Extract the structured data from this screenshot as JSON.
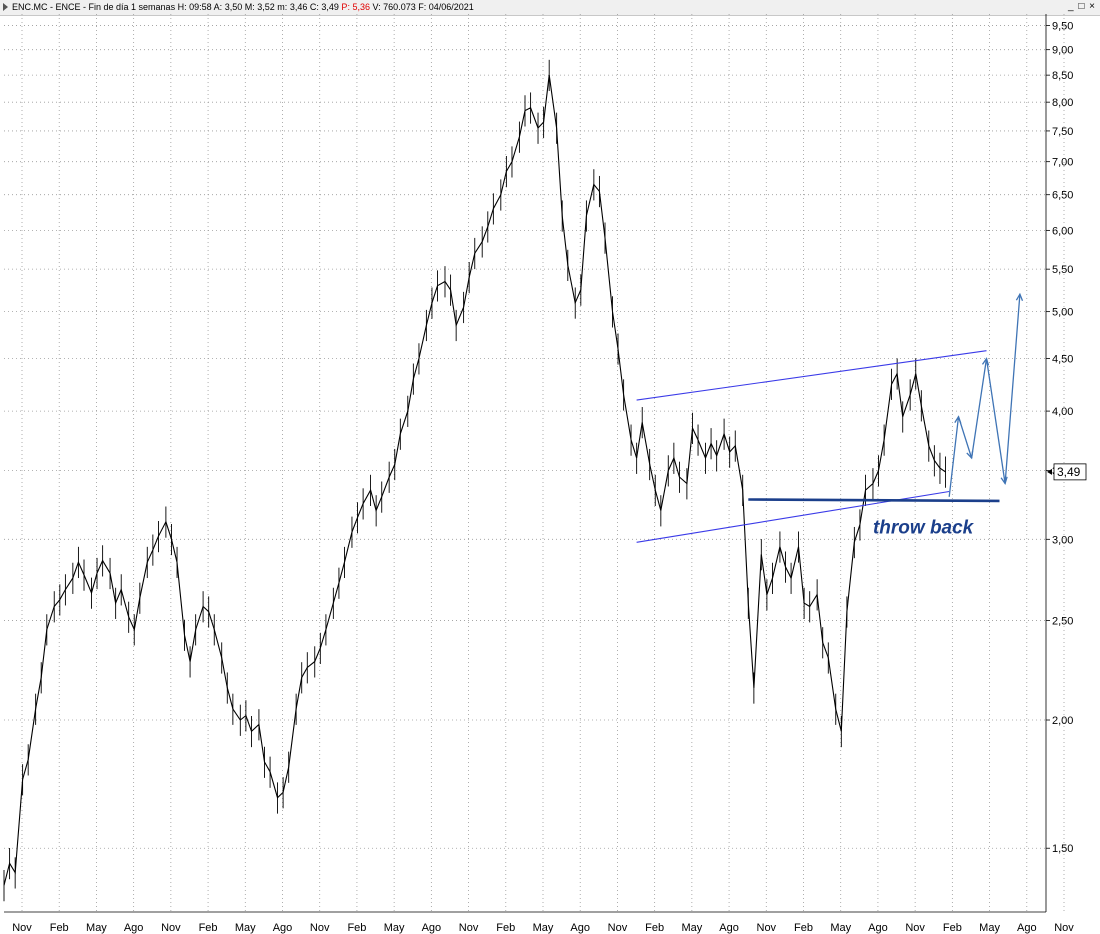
{
  "window": {
    "symbol": "ENC.MC",
    "name": "ENCE",
    "period": "Fin de día 1 semanas",
    "h_label": "H:",
    "h_value": "09:58",
    "a_label": "A:",
    "a_value": "3,50",
    "m_label": "M:",
    "m_value": "3,52",
    "min_label": "m:",
    "min_value": "3,46",
    "c_label": "C:",
    "c_value": "3,49",
    "p_label": "P",
    "p_value": ": 5,36",
    "v_label": "V:",
    "v_value": "760.073",
    "f_label": "F:",
    "f_value": "04/06/2021",
    "buttons": "_ □ ×"
  },
  "chart_data": {
    "type": "line",
    "scale": "log",
    "ylim": [
      1.3,
      9.75
    ],
    "y_ticks": [
      "9,50",
      "9,00",
      "8,50",
      "8,00",
      "7,50",
      "7,00",
      "6,50",
      "6,00",
      "5,50",
      "5,00",
      "4,50",
      "4,00",
      "3,50",
      "3,00",
      "2,50",
      "2,00",
      "1,50"
    ],
    "x_ticks": [
      "Nov",
      "Feb",
      "May",
      "Ago",
      "Nov",
      "Feb",
      "May",
      "Ago",
      "Nov",
      "Feb",
      "May",
      "Ago",
      "Nov",
      "Feb",
      "May",
      "Ago",
      "Nov",
      "Feb",
      "May",
      "Ago",
      "Nov",
      "Feb",
      "May",
      "Ago",
      "Nov",
      "Feb",
      "May",
      "Ago",
      "Nov"
    ],
    "last_value": "3,49",
    "annotation": "throw back",
    "series": [
      {
        "values": [
          [
            0,
            1.38
          ],
          [
            3,
            1.45
          ],
          [
            6,
            1.42
          ],
          [
            10,
            1.75
          ],
          [
            13,
            1.83
          ],
          [
            17,
            2.05
          ],
          [
            20,
            2.2
          ],
          [
            23,
            2.45
          ],
          [
            27,
            2.58
          ],
          [
            30,
            2.62
          ],
          [
            33,
            2.68
          ],
          [
            37,
            2.75
          ],
          [
            40,
            2.85
          ],
          [
            43,
            2.77
          ],
          [
            47,
            2.66
          ],
          [
            50,
            2.78
          ],
          [
            53,
            2.86
          ],
          [
            57,
            2.78
          ],
          [
            60,
            2.6
          ],
          [
            63,
            2.68
          ],
          [
            67,
            2.52
          ],
          [
            70,
            2.45
          ],
          [
            73,
            2.63
          ],
          [
            77,
            2.85
          ],
          [
            80,
            2.93
          ],
          [
            83,
            3.02
          ],
          [
            87,
            3.12
          ],
          [
            90,
            3.0
          ],
          [
            93,
            2.85
          ],
          [
            97,
            2.42
          ],
          [
            100,
            2.28
          ],
          [
            103,
            2.45
          ],
          [
            107,
            2.58
          ],
          [
            110,
            2.55
          ],
          [
            113,
            2.45
          ],
          [
            117,
            2.3
          ],
          [
            120,
            2.15
          ],
          [
            123,
            2.05
          ],
          [
            127,
            2.0
          ],
          [
            130,
            2.02
          ],
          [
            133,
            1.95
          ],
          [
            137,
            1.98
          ],
          [
            140,
            1.82
          ],
          [
            143,
            1.78
          ],
          [
            147,
            1.68
          ],
          [
            150,
            1.7
          ],
          [
            153,
            1.8
          ],
          [
            157,
            2.05
          ],
          [
            160,
            2.2
          ],
          [
            163,
            2.25
          ],
          [
            167,
            2.28
          ],
          [
            170,
            2.35
          ],
          [
            173,
            2.45
          ],
          [
            177,
            2.6
          ],
          [
            180,
            2.72
          ],
          [
            183,
            2.85
          ],
          [
            187,
            3.05
          ],
          [
            190,
            3.15
          ],
          [
            193,
            3.25
          ],
          [
            197,
            3.35
          ],
          [
            200,
            3.2
          ],
          [
            203,
            3.3
          ],
          [
            207,
            3.45
          ],
          [
            210,
            3.55
          ],
          [
            213,
            3.8
          ],
          [
            217,
            4.0
          ],
          [
            220,
            4.3
          ],
          [
            223,
            4.5
          ],
          [
            227,
            4.85
          ],
          [
            230,
            5.1
          ],
          [
            233,
            5.3
          ],
          [
            237,
            5.35
          ],
          [
            240,
            5.25
          ],
          [
            243,
            4.85
          ],
          [
            247,
            5.05
          ],
          [
            250,
            5.4
          ],
          [
            253,
            5.7
          ],
          [
            257,
            5.85
          ],
          [
            260,
            6.05
          ],
          [
            263,
            6.3
          ],
          [
            267,
            6.5
          ],
          [
            270,
            6.85
          ],
          [
            273,
            7.0
          ],
          [
            277,
            7.4
          ],
          [
            280,
            7.85
          ],
          [
            283,
            7.9
          ],
          [
            287,
            7.55
          ],
          [
            290,
            7.65
          ],
          [
            293,
            8.5
          ],
          [
            297,
            7.55
          ],
          [
            300,
            6.2
          ],
          [
            303,
            5.55
          ],
          [
            307,
            5.1
          ],
          [
            310,
            5.25
          ],
          [
            313,
            6.2
          ],
          [
            317,
            6.65
          ],
          [
            320,
            6.55
          ],
          [
            323,
            5.9
          ],
          [
            327,
            5.0
          ],
          [
            330,
            4.6
          ],
          [
            333,
            4.15
          ],
          [
            337,
            3.75
          ],
          [
            340,
            3.6
          ],
          [
            343,
            3.9
          ],
          [
            347,
            3.55
          ],
          [
            350,
            3.35
          ],
          [
            353,
            3.2
          ],
          [
            357,
            3.5
          ],
          [
            360,
            3.6
          ],
          [
            363,
            3.45
          ],
          [
            367,
            3.4
          ],
          [
            370,
            3.85
          ],
          [
            373,
            3.75
          ],
          [
            377,
            3.6
          ],
          [
            380,
            3.72
          ],
          [
            383,
            3.62
          ],
          [
            387,
            3.8
          ],
          [
            390,
            3.65
          ],
          [
            393,
            3.7
          ],
          [
            397,
            3.35
          ],
          [
            400,
            2.6
          ],
          [
            403,
            2.15
          ],
          [
            407,
            2.9
          ],
          [
            410,
            2.65
          ],
          [
            413,
            2.75
          ],
          [
            417,
            2.95
          ],
          [
            420,
            2.82
          ],
          [
            423,
            2.75
          ],
          [
            427,
            2.95
          ],
          [
            430,
            2.6
          ],
          [
            433,
            2.58
          ],
          [
            437,
            2.65
          ],
          [
            440,
            2.38
          ],
          [
            443,
            2.3
          ],
          [
            447,
            2.05
          ],
          [
            450,
            1.95
          ],
          [
            453,
            2.55
          ],
          [
            457,
            2.98
          ],
          [
            460,
            3.1
          ],
          [
            463,
            3.35
          ],
          [
            467,
            3.4
          ],
          [
            470,
            3.5
          ],
          [
            473,
            3.75
          ],
          [
            477,
            4.25
          ],
          [
            480,
            4.35
          ],
          [
            483,
            3.95
          ],
          [
            487,
            4.15
          ],
          [
            490,
            4.35
          ],
          [
            493,
            4.05
          ],
          [
            497,
            3.7
          ],
          [
            500,
            3.58
          ],
          [
            503,
            3.52
          ],
          [
            506,
            3.49
          ]
        ]
      }
    ],
    "lines": {
      "upper_channel": [
        [
          340,
          4.1
        ],
        [
          528,
          4.58
        ]
      ],
      "lower_channel": [
        [
          340,
          2.98
        ],
        [
          508,
          3.34
        ]
      ],
      "support": [
        [
          400,
          3.28
        ],
        [
          535,
          3.27
        ]
      ],
      "projection": [
        [
          508,
          3.3
        ],
        [
          513,
          3.95
        ],
        [
          520,
          3.6
        ],
        [
          528,
          4.5
        ],
        [
          538,
          3.4
        ],
        [
          546,
          5.2
        ]
      ]
    },
    "x_range": [
      0,
      560
    ]
  }
}
